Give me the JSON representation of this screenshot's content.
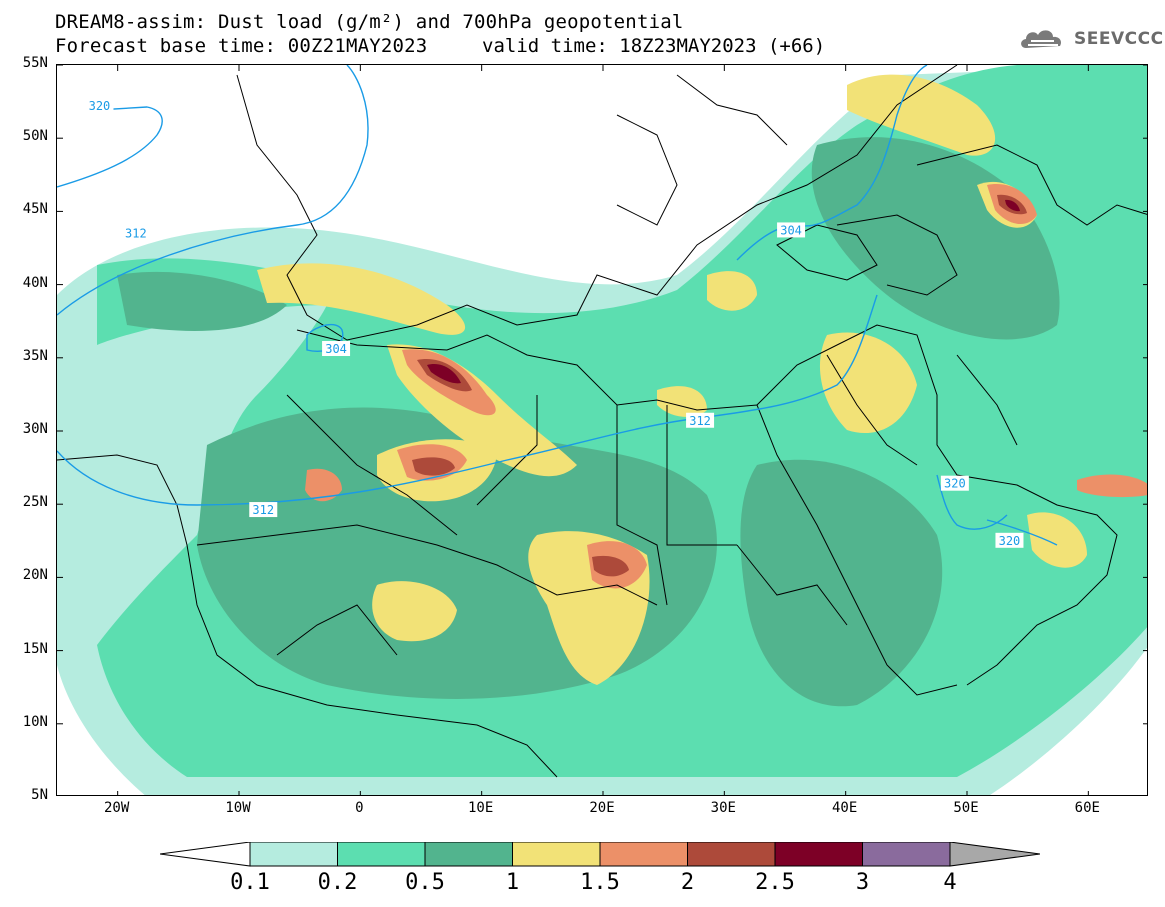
{
  "title": {
    "line1": "DREAM8-assim: Dust load (g/m²) and 700hPa geopotential",
    "line2": "Forecast base time: 00Z21MAY2023",
    "valid_time": "valid time: 18Z23MAY2023 (+66)"
  },
  "logo": {
    "text": "SEEVCCC",
    "icon": "cloud-logo-icon"
  },
  "map": {
    "lon_range": [
      -25,
      65
    ],
    "lat_range": [
      5,
      55
    ],
    "lat_ticks": [
      "55N",
      "50N",
      "45N",
      "40N",
      "35N",
      "30N",
      "25N",
      "20N",
      "15N",
      "10N",
      "5N"
    ],
    "lat_values": [
      55,
      50,
      45,
      40,
      35,
      30,
      25,
      20,
      15,
      10,
      5
    ],
    "lon_ticks": [
      "20W",
      "10W",
      "0",
      "10E",
      "20E",
      "30E",
      "40E",
      "50E",
      "60E"
    ],
    "lon_values": [
      -20,
      -10,
      0,
      10,
      20,
      30,
      40,
      50,
      60
    ],
    "contour_labels": [
      {
        "text": "320",
        "lon": -21.5,
        "lat": 52.2
      },
      {
        "text": "312",
        "lon": -18.5,
        "lat": 43.5
      },
      {
        "text": "304",
        "lon": -2,
        "lat": 35.6
      },
      {
        "text": "312",
        "lon": 28,
        "lat": 30.7
      },
      {
        "text": "304",
        "lon": 35.5,
        "lat": 43.7
      },
      {
        "text": "312",
        "lon": -8,
        "lat": 24.6
      },
      {
        "text": "320",
        "lon": 49,
        "lat": 26.4
      },
      {
        "text": "320",
        "lon": 53.5,
        "lat": 22.5
      }
    ]
  },
  "colorbar": {
    "levels": [
      "0.1",
      "0.2",
      "0.5",
      "1",
      "1.5",
      "2",
      "2.5",
      "3",
      "4"
    ],
    "colors": [
      "#ffffff",
      "#b5ecdf",
      "#5cdeb0",
      "#52b48e",
      "#f2e277",
      "#ec9068",
      "#ad4a3a",
      "#7d0026",
      "#8a6b9d",
      "#a8a8a8"
    ]
  },
  "colors": {
    "contour": "#1a9be6",
    "coast": "#000000"
  }
}
